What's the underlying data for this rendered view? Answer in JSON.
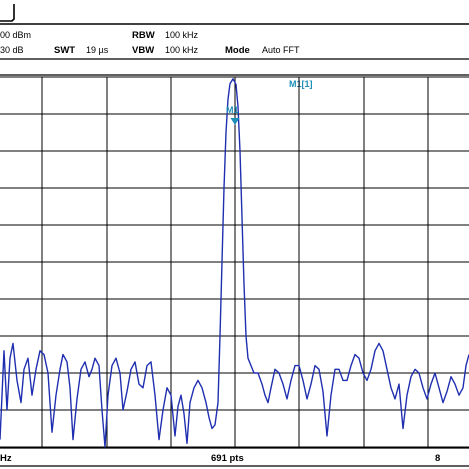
{
  "header": {
    "ref_level": "00 dBm",
    "attenuation": "30 dB",
    "swt_label": "SWT",
    "swt_value": "19 µs",
    "rbw_label": "RBW",
    "rbw_value": "100 kHz",
    "vbw_label": "VBW",
    "vbw_value": "100 kHz",
    "mode_label": "Mode",
    "mode_value": "Auto FFT"
  },
  "marker": {
    "readout": "M1[1]",
    "label": "M1",
    "color": "#1e8fb8"
  },
  "footer": {
    "left": "Hz",
    "center": "691 pts",
    "right": "8"
  },
  "trace": {
    "color": "#1f2fb0",
    "points_db_below_ref": [
      [
        0,
        0.98
      ],
      [
        4,
        0.74
      ],
      [
        7,
        0.9
      ],
      [
        10,
        0.76
      ],
      [
        13,
        0.72
      ],
      [
        17,
        0.82
      ],
      [
        21,
        0.88
      ],
      [
        24,
        0.79
      ],
      [
        28,
        0.76
      ],
      [
        32,
        0.86
      ],
      [
        36,
        0.79
      ],
      [
        40,
        0.74
      ],
      [
        44,
        0.75
      ],
      [
        48,
        0.8
      ],
      [
        52,
        0.96
      ],
      [
        56,
        0.86
      ],
      [
        60,
        0.79
      ],
      [
        63,
        0.75
      ],
      [
        67,
        0.77
      ],
      [
        70,
        0.84
      ],
      [
        73,
        0.98
      ],
      [
        77,
        0.87
      ],
      [
        81,
        0.79
      ],
      [
        85,
        0.77
      ],
      [
        89,
        0.81
      ],
      [
        92,
        0.79
      ],
      [
        95,
        0.76
      ],
      [
        99,
        0.78
      ],
      [
        102,
        0.9
      ],
      [
        105,
        1.0
      ],
      [
        108,
        0.86
      ],
      [
        112,
        0.78
      ],
      [
        116,
        0.76
      ],
      [
        120,
        0.8
      ],
      [
        123,
        0.9
      ],
      [
        127,
        0.85
      ],
      [
        131,
        0.79
      ],
      [
        135,
        0.77
      ],
      [
        139,
        0.83
      ],
      [
        143,
        0.84
      ],
      [
        147,
        0.78
      ],
      [
        151,
        0.77
      ],
      [
        155,
        0.86
      ],
      [
        159,
        0.98
      ],
      [
        163,
        0.9
      ],
      [
        167,
        0.84
      ],
      [
        171,
        0.86
      ],
      [
        175,
        0.97
      ],
      [
        178,
        0.89
      ],
      [
        181,
        0.86
      ],
      [
        184,
        0.91
      ],
      [
        187,
        0.99
      ],
      [
        190,
        0.88
      ],
      [
        194,
        0.84
      ],
      [
        198,
        0.82
      ],
      [
        202,
        0.84
      ],
      [
        206,
        0.88
      ],
      [
        209,
        0.92
      ],
      [
        212,
        0.95
      ],
      [
        215,
        0.94
      ],
      [
        218,
        0.88
      ],
      [
        220,
        0.7
      ],
      [
        222,
        0.5
      ],
      [
        224,
        0.3
      ],
      [
        226,
        0.15
      ],
      [
        228,
        0.06
      ],
      [
        230,
        0.018
      ],
      [
        233,
        0.005
      ],
      [
        236,
        0.02
      ],
      [
        238,
        0.08
      ],
      [
        240,
        0.2
      ],
      [
        242,
        0.38
      ],
      [
        244,
        0.56
      ],
      [
        246,
        0.7
      ],
      [
        248,
        0.76
      ],
      [
        251,
        0.78
      ],
      [
        254,
        0.8
      ],
      [
        258,
        0.8
      ],
      [
        262,
        0.83
      ],
      [
        265,
        0.86
      ],
      [
        268,
        0.88
      ],
      [
        271,
        0.84
      ],
      [
        275,
        0.79
      ],
      [
        279,
        0.8
      ],
      [
        283,
        0.83
      ],
      [
        287,
        0.87
      ],
      [
        291,
        0.82
      ],
      [
        295,
        0.78
      ],
      [
        299,
        0.78
      ],
      [
        303,
        0.82
      ],
      [
        307,
        0.87
      ],
      [
        311,
        0.83
      ],
      [
        315,
        0.78
      ],
      [
        319,
        0.79
      ],
      [
        323,
        0.85
      ],
      [
        327,
        0.97
      ],
      [
        331,
        0.86
      ],
      [
        335,
        0.79
      ],
      [
        339,
        0.79
      ],
      [
        343,
        0.82
      ],
      [
        347,
        0.82
      ],
      [
        351,
        0.78
      ],
      [
        355,
        0.75
      ],
      [
        359,
        0.76
      ],
      [
        363,
        0.8
      ],
      [
        367,
        0.82
      ],
      [
        371,
        0.79
      ],
      [
        375,
        0.74
      ],
      [
        379,
        0.72
      ],
      [
        383,
        0.74
      ],
      [
        387,
        0.79
      ],
      [
        391,
        0.84
      ],
      [
        395,
        0.87
      ],
      [
        399,
        0.83
      ],
      [
        403,
        0.95
      ],
      [
        407,
        0.86
      ],
      [
        411,
        0.81
      ],
      [
        415,
        0.79
      ],
      [
        419,
        0.8
      ],
      [
        423,
        0.84
      ],
      [
        427,
        0.87
      ],
      [
        431,
        0.83
      ],
      [
        435,
        0.8
      ],
      [
        439,
        0.84
      ],
      [
        443,
        0.88
      ],
      [
        447,
        0.85
      ],
      [
        451,
        0.81
      ],
      [
        455,
        0.83
      ],
      [
        459,
        0.86
      ],
      [
        463,
        0.84
      ],
      [
        466,
        0.78
      ],
      [
        469,
        0.75
      ]
    ]
  }
}
